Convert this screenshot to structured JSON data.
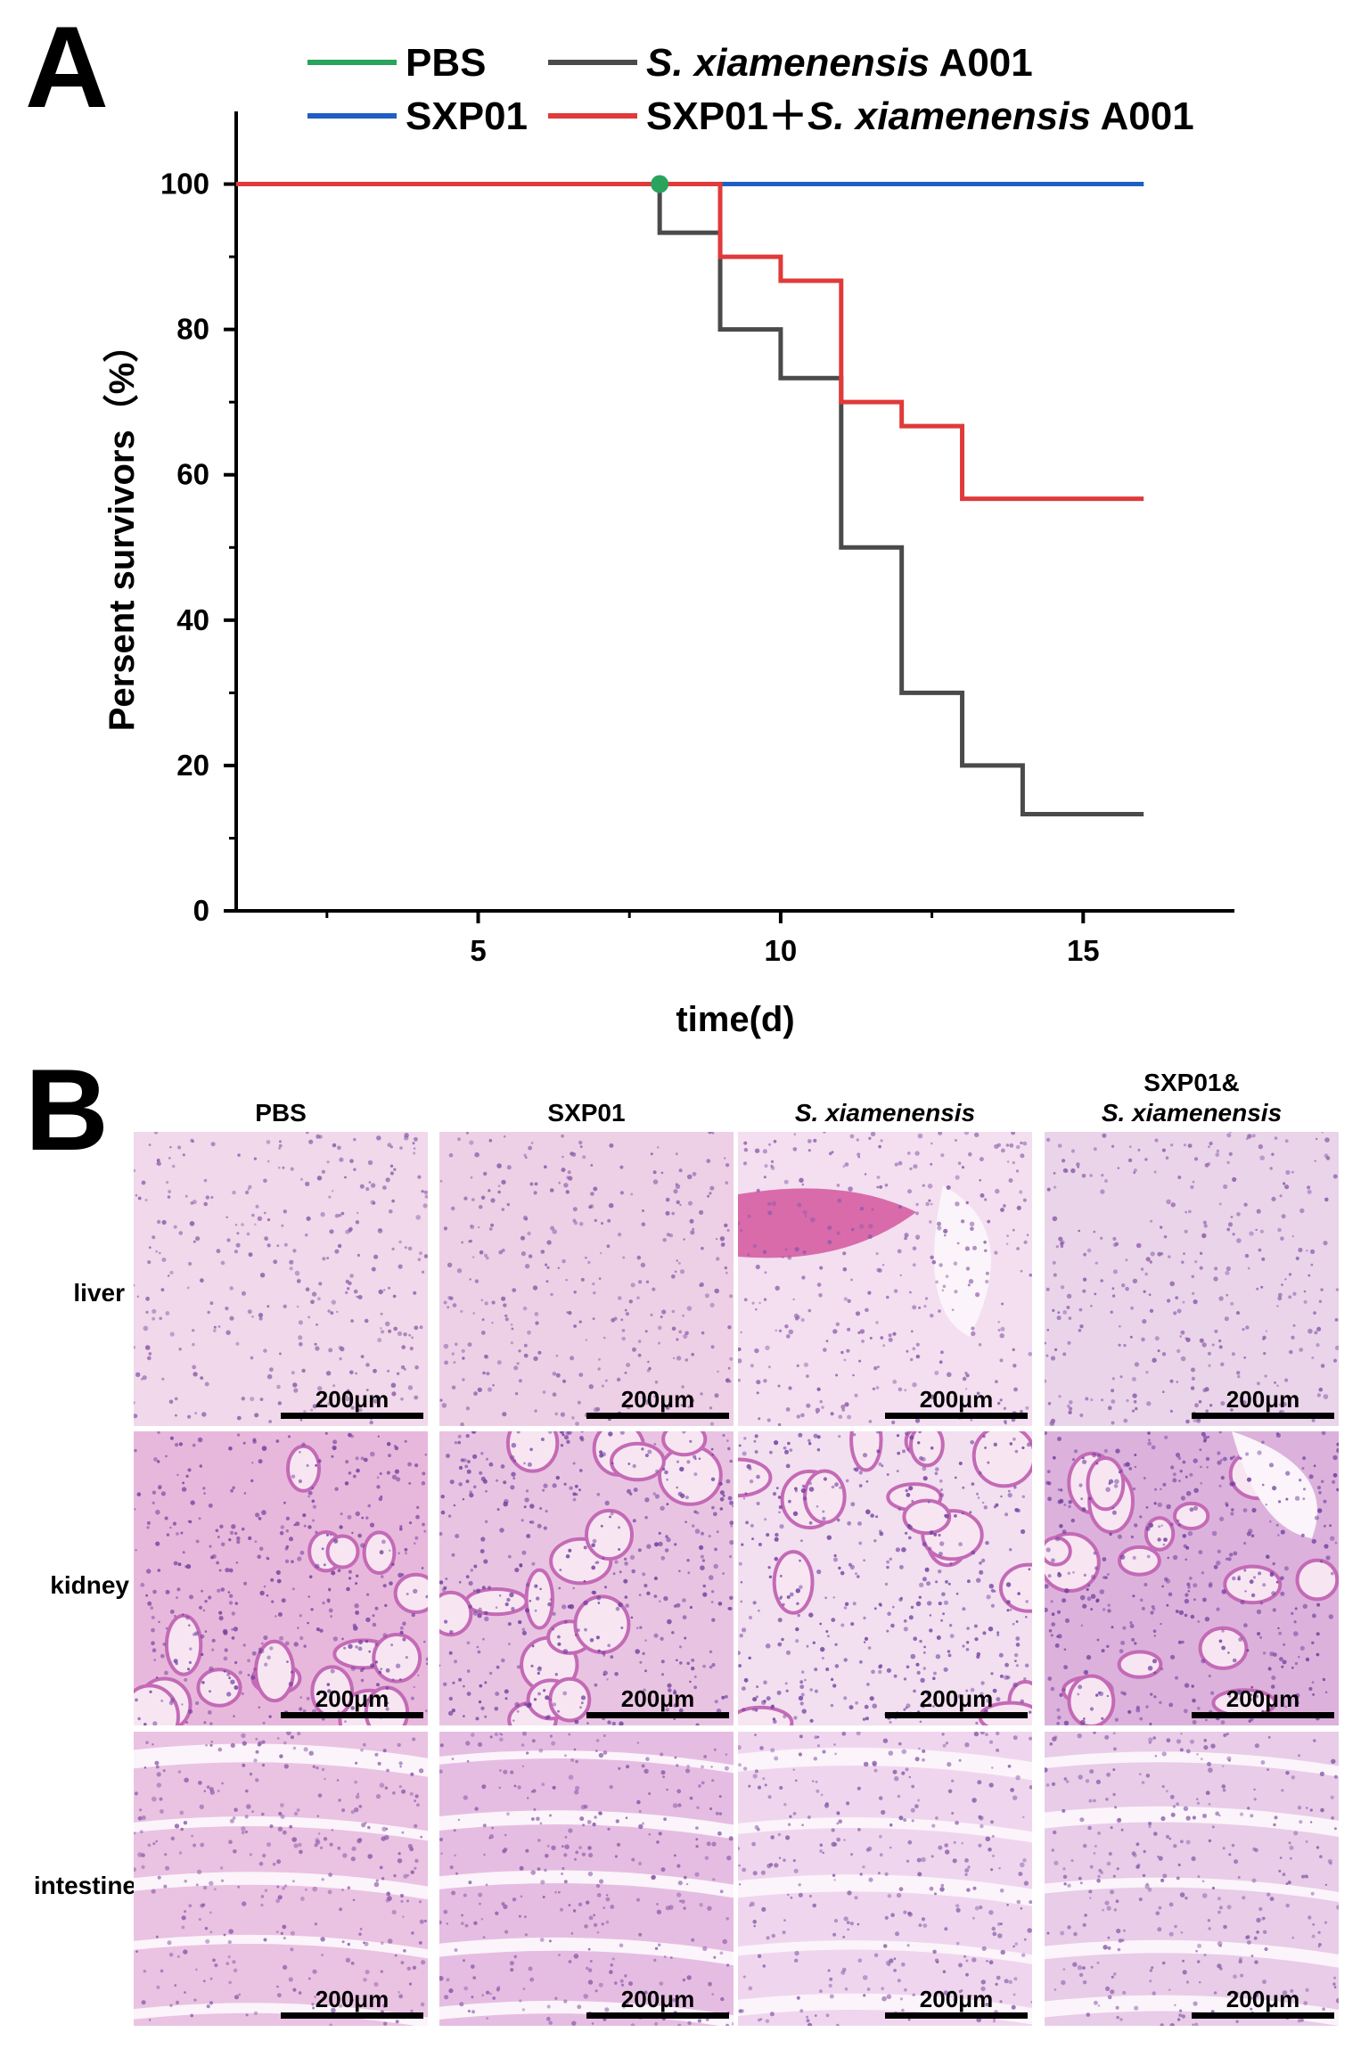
{
  "panel_a": {
    "letter": "A"
  },
  "panel_b": {
    "letter": "B",
    "columns": [
      {
        "label": "PBS",
        "italic": false
      },
      {
        "label": "SXP01",
        "italic": false
      },
      {
        "label": "S. xiamenensis",
        "italic": true
      },
      {
        "label_line1": "SXP01&",
        "label_line2": "S. xiamenensis",
        "italic": true
      }
    ],
    "rows": [
      "liver",
      "kidney",
      "intestine"
    ],
    "scale_label": "200μm"
  },
  "chart_data": {
    "type": "line",
    "step": true,
    "xlabel": "time(d)",
    "ylabel": "Persent survivors（%）",
    "xlim": [
      1,
      17.5
    ],
    "ylim": [
      0,
      110
    ],
    "xticks": [
      5,
      10,
      15
    ],
    "yticks": [
      0,
      20,
      40,
      60,
      80,
      100
    ],
    "grid": false,
    "legend_position": "top",
    "legend": [
      {
        "name": "PBS",
        "color": "#2aa35c"
      },
      {
        "name_italic": "S. xiamenensis",
        "name_rest": " A001",
        "color": "#4a4a4a"
      },
      {
        "name": "SXP01",
        "color": "#1f5fc4"
      },
      {
        "name_plain": "SXP01＋",
        "name_italic": "S. xiamenensis",
        "name_rest": " A001",
        "color": "#e03a3a"
      }
    ],
    "series": [
      {
        "name": "PBS",
        "color": "#2aa35c",
        "x": [
          1,
          16
        ],
        "y": [
          100,
          100
        ]
      },
      {
        "name": "SXP01",
        "color": "#1f5fc4",
        "x": [
          1,
          16
        ],
        "y": [
          100,
          100
        ]
      },
      {
        "name": "S. xiamenensis A001",
        "color": "#4a4a4a",
        "x": [
          1,
          8,
          9,
          10,
          11,
          12,
          13,
          14,
          16
        ],
        "y": [
          100,
          93.3,
          80,
          73.3,
          50,
          30,
          20,
          13.3,
          13.3
        ]
      },
      {
        "name": "SXP01+S. xiamenensis A001",
        "color": "#e03a3a",
        "x": [
          1,
          9,
          10,
          11,
          12,
          13,
          16
        ],
        "y": [
          100,
          90,
          86.7,
          70,
          66.7,
          56.7,
          56.7
        ]
      }
    ],
    "markers": [
      {
        "x": 8,
        "y": 100,
        "color": "#2aa35c"
      }
    ]
  }
}
